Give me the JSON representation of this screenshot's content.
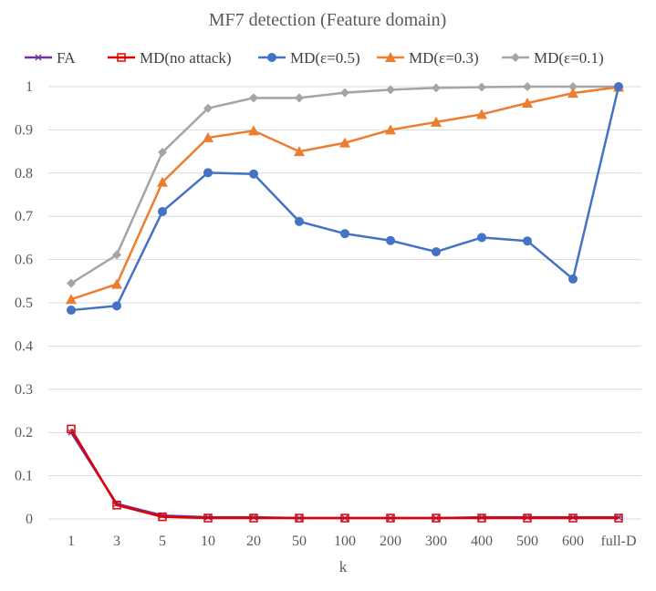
{
  "chart_data": {
    "type": "line",
    "title": "MF7 detection (Feature domain)",
    "xlabel": "k",
    "ylabel": "",
    "ylim": [
      0,
      1
    ],
    "yticks": [
      "0",
      "0.1",
      "0.2",
      "0.3",
      "0.4",
      "0.5",
      "0.6",
      "0.7",
      "0.8",
      "0.9",
      "1"
    ],
    "categories": [
      "1",
      "3",
      "5",
      "10",
      "20",
      "50",
      "100",
      "200",
      "300",
      "400",
      "500",
      "600",
      "full-D"
    ],
    "legend_position": "top",
    "series": [
      {
        "name": "FA",
        "color": "#7030a0",
        "marker": "star",
        "values": [
          0.2,
          0.035,
          0.008,
          0.004,
          0.004,
          0.002,
          0.002,
          0.002,
          0.002,
          0.004,
          0.004,
          0.004,
          0.004
        ]
      },
      {
        "name": "MD(no attack)",
        "color": "#e00000",
        "marker": "square-open",
        "values": [
          0.208,
          0.032,
          0.005,
          0.002,
          0.002,
          0.002,
          0.002,
          0.002,
          0.002,
          0.002,
          0.002,
          0.002,
          0.002
        ]
      },
      {
        "name": "MD(ε=0.5)",
        "color": "#4472c4",
        "marker": "circle",
        "values": [
          0.483,
          0.493,
          0.711,
          0.801,
          0.798,
          0.688,
          0.66,
          0.644,
          0.618,
          0.651,
          0.643,
          0.555,
          1.0
        ]
      },
      {
        "name": "MD(ε=0.3)",
        "color": "#ed7d31",
        "marker": "triangle",
        "values": [
          0.508,
          0.543,
          0.779,
          0.882,
          0.898,
          0.85,
          0.87,
          0.9,
          0.918,
          0.936,
          0.962,
          0.985,
          0.999
        ]
      },
      {
        "name": "MD(ε=0.1)",
        "color": "#a5a5a5",
        "marker": "diamond",
        "values": [
          0.545,
          0.611,
          0.848,
          0.95,
          0.974,
          0.974,
          0.986,
          0.993,
          0.997,
          0.999,
          1.0,
          1.0,
          1.0
        ]
      }
    ]
  }
}
